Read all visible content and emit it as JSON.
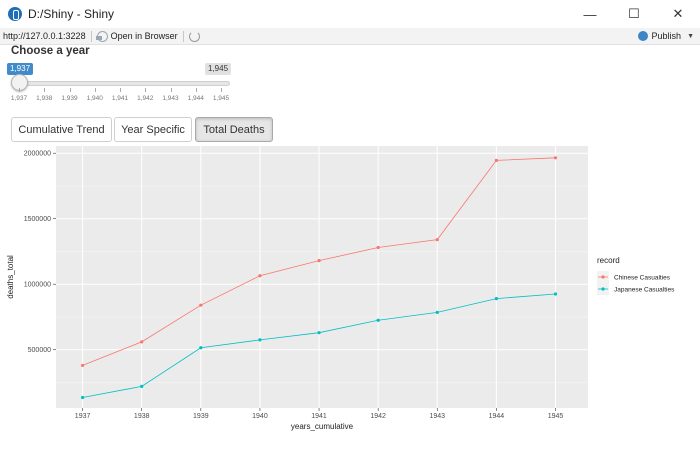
{
  "window": {
    "title": "D:/Shiny - Shiny"
  },
  "toolbar": {
    "url": "http://127.0.0.1:3228",
    "open_in_browser": "Open in Browser",
    "publish": "Publish"
  },
  "slider": {
    "label": "Choose a year",
    "min_value": "1,937",
    "max_value": "1,945",
    "ticks": [
      "1,937",
      "1,938",
      "1,939",
      "1,940",
      "1,941",
      "1,942",
      "1,943",
      "1,944",
      "1,945"
    ]
  },
  "buttons": {
    "cumulative": "Cumulative Trend",
    "year": "Year Specific",
    "total": "Total Deaths"
  },
  "chart_data": {
    "type": "line",
    "x": [
      1937,
      1938,
      1939,
      1940,
      1941,
      1942,
      1943,
      1944,
      1945
    ],
    "series": [
      {
        "name": "Chinese Casualties",
        "color": "#F8766D",
        "values": [
          380000,
          560000,
          840000,
          1065000,
          1180000,
          1280000,
          1340000,
          1945000,
          1965000
        ]
      },
      {
        "name": "Japanese Casualties",
        "color": "#00BFC4",
        "values": [
          135000,
          220000,
          515000,
          575000,
          630000,
          725000,
          785000,
          890000,
          925000
        ]
      }
    ],
    "xlabel": "years_cumulative",
    "ylabel": "deaths_total",
    "xticks": [
      "1937",
      "1938",
      "1939",
      "1940",
      "1941",
      "1942",
      "1943",
      "1944",
      "1945"
    ],
    "yticks": [
      "500000",
      "1000000",
      "1500000",
      "2000000"
    ],
    "ytick_values": [
      500000,
      1000000,
      1500000,
      2000000
    ],
    "xlim": [
      1936.55,
      1945.55
    ],
    "ylim": [
      55000,
      2055000
    ],
    "legend_title": "record",
    "legend_position": "right",
    "grid": true
  }
}
